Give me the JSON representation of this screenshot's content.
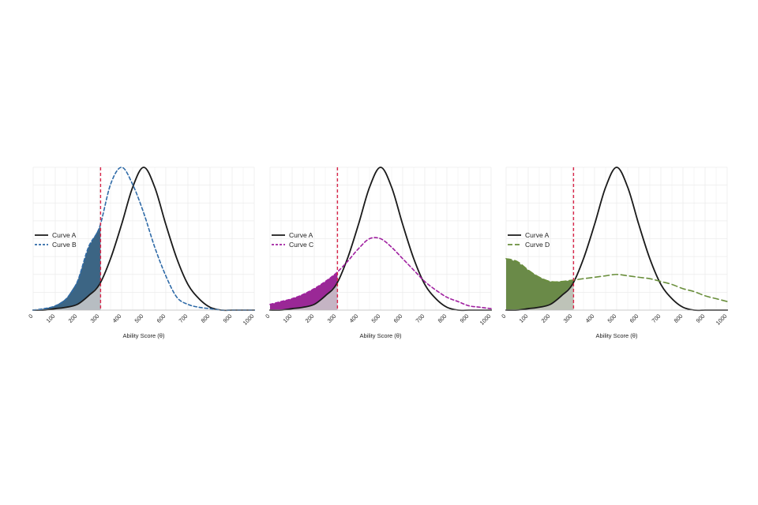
{
  "chart_data": [
    {
      "type": "area",
      "xlabel": "Ability Score (θ)",
      "ylabel": "",
      "xlim": [
        0,
        1000
      ],
      "ylim": [
        0,
        1.0
      ],
      "xticks": [
        "0",
        "100",
        "200",
        "300",
        "400",
        "500",
        "600",
        "700",
        "800",
        "900",
        "1000"
      ],
      "cutoff": 305,
      "grid": true,
      "legend_position": "left",
      "series": [
        {
          "name": "Curve A",
          "style": "solid",
          "color": "#1a1a1a",
          "x": [
            0,
            50,
            100,
            150,
            200,
            250,
            300,
            350,
            400,
            450,
            500,
            550,
            600,
            650,
            700,
            750,
            800,
            850,
            900,
            950,
            1000
          ],
          "y": [
            0,
            0,
            0.01,
            0.02,
            0.04,
            0.1,
            0.18,
            0.36,
            0.6,
            0.86,
            1.0,
            0.86,
            0.6,
            0.36,
            0.18,
            0.08,
            0.02,
            0,
            0,
            0,
            0
          ]
        },
        {
          "name": "Curve B",
          "style": "dashed",
          "color": "#2e6aa7",
          "x": [
            0,
            50,
            100,
            150,
            200,
            250,
            300,
            350,
            400,
            450,
            500,
            550,
            600,
            650,
            700,
            750,
            800,
            850,
            900,
            950,
            1000
          ],
          "y": [
            0,
            0.01,
            0.03,
            0.08,
            0.2,
            0.44,
            0.58,
            0.88,
            1.0,
            0.88,
            0.68,
            0.44,
            0.24,
            0.09,
            0.04,
            0.02,
            0.01,
            0,
            0,
            0,
            0
          ]
        }
      ],
      "shaded_fill": "#3c6584",
      "overlap_fill": "#cccccc"
    },
    {
      "type": "area",
      "xlabel": "Ability Score (θ)",
      "ylabel": "",
      "xlim": [
        0,
        1000
      ],
      "ylim": [
        0,
        1.0
      ],
      "xticks": [
        "0",
        "100",
        "200",
        "300",
        "400",
        "500",
        "600",
        "700",
        "800",
        "900",
        "1000"
      ],
      "cutoff": 305,
      "grid": true,
      "legend_position": "left",
      "series": [
        {
          "name": "Curve A",
          "style": "solid",
          "color": "#1a1a1a",
          "x": [
            0,
            50,
            100,
            150,
            200,
            250,
            300,
            350,
            400,
            450,
            500,
            550,
            600,
            650,
            700,
            750,
            800,
            850,
            900,
            950,
            1000
          ],
          "y": [
            0,
            0,
            0.01,
            0.02,
            0.04,
            0.1,
            0.18,
            0.36,
            0.6,
            0.86,
            1.0,
            0.86,
            0.6,
            0.36,
            0.18,
            0.08,
            0.02,
            0,
            0,
            0,
            0
          ]
        },
        {
          "name": "Curve C",
          "style": "dashed",
          "color": "#a020a0",
          "x": [
            0,
            50,
            100,
            150,
            200,
            250,
            300,
            350,
            400,
            450,
            500,
            550,
            600,
            650,
            700,
            750,
            800,
            850,
            900,
            950,
            1000
          ],
          "y": [
            0.04,
            0.06,
            0.08,
            0.11,
            0.15,
            0.2,
            0.26,
            0.34,
            0.43,
            0.5,
            0.5,
            0.44,
            0.36,
            0.28,
            0.2,
            0.14,
            0.09,
            0.06,
            0.03,
            0.02,
            0.01
          ]
        }
      ],
      "shaded_fill": "#9a2896",
      "overlap_fill": "#cccccc"
    },
    {
      "type": "area",
      "xlabel": "Ability Score (θ)",
      "ylabel": "",
      "xlim": [
        0,
        1000
      ],
      "ylim": [
        0,
        1.0
      ],
      "xticks": [
        "0",
        "100",
        "200",
        "300",
        "400",
        "500",
        "600",
        "700",
        "800",
        "900",
        "1000"
      ],
      "cutoff": 305,
      "grid": true,
      "legend_position": "left",
      "series": [
        {
          "name": "Curve A",
          "style": "solid",
          "color": "#1a1a1a",
          "x": [
            0,
            50,
            100,
            150,
            200,
            250,
            300,
            350,
            400,
            450,
            500,
            550,
            600,
            650,
            700,
            750,
            800,
            850,
            900,
            950,
            1000
          ],
          "y": [
            0,
            0,
            0.01,
            0.02,
            0.04,
            0.1,
            0.18,
            0.36,
            0.6,
            0.86,
            1.0,
            0.86,
            0.6,
            0.36,
            0.18,
            0.08,
            0.02,
            0,
            0,
            0,
            0
          ]
        },
        {
          "name": "Curve D",
          "style": "dashed",
          "color": "#6a8f3c",
          "x": [
            0,
            50,
            100,
            150,
            200,
            250,
            300,
            350,
            400,
            450,
            500,
            550,
            600,
            650,
            700,
            750,
            800,
            850,
            900,
            950,
            1000
          ],
          "y": [
            0.36,
            0.34,
            0.28,
            0.23,
            0.2,
            0.2,
            0.21,
            0.22,
            0.23,
            0.24,
            0.25,
            0.24,
            0.23,
            0.22,
            0.2,
            0.18,
            0.15,
            0.13,
            0.1,
            0.08,
            0.06
          ]
        }
      ],
      "shaded_fill": "#6a8a48",
      "overlap_fill": "#cccccc"
    }
  ]
}
